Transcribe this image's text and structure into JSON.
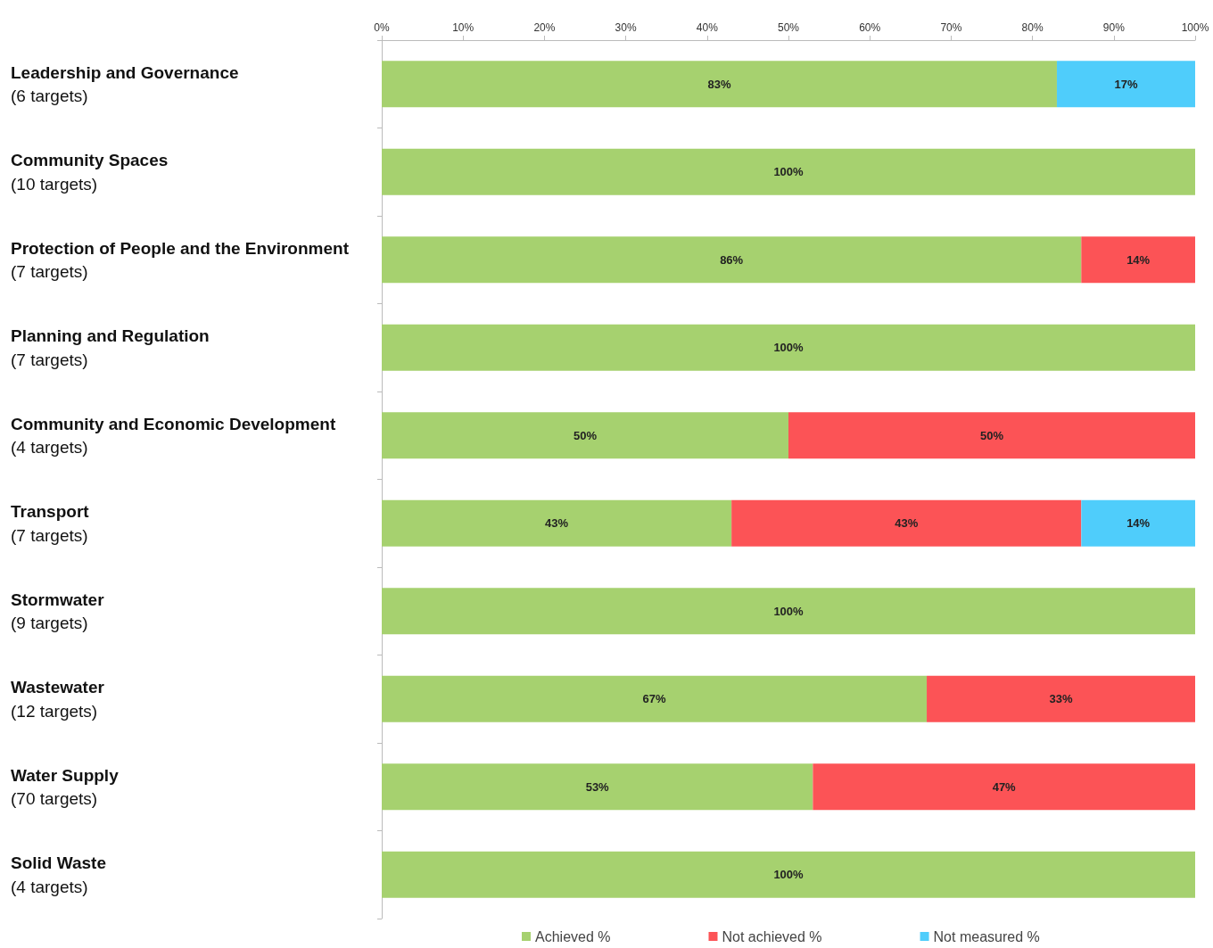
{
  "chart_data": {
    "type": "bar",
    "orientation": "horizontal",
    "stacked": true,
    "categories": [
      "Leadership and Governance\n(6 targets)",
      "Community Spaces\n(10 targets)",
      "Protection of People and the Environment\n(7 targets)",
      "Planning and Regulation\n(7 targets)",
      "Community and Economic Development\n(4 targets)",
      "Transport\n(7 targets)",
      "Stormwater\n(9 targets)",
      "Wastewater\n(12 targets)",
      "Water Supply\n(70 targets)",
      "Solid Waste\n(4 targets)"
    ],
    "series": [
      {
        "name": "Achieved %",
        "color": "#a6d16f",
        "values": [
          83,
          100,
          86,
          100,
          50,
          43,
          100,
          67,
          53,
          100
        ],
        "value_labels": [
          "83%",
          "100%",
          "86%",
          "100%",
          "50%",
          "43%",
          "100%",
          "67%",
          "53%",
          "100%"
        ]
      },
      {
        "name": "Not achieved %",
        "color": "#fc5356",
        "values": [
          null,
          null,
          14,
          null,
          50,
          43,
          null,
          33,
          47,
          null
        ],
        "value_labels": [
          null,
          null,
          "14%",
          null,
          "50%",
          "43%",
          null,
          "33%",
          "47%",
          null
        ]
      },
      {
        "name": "Not measured %",
        "color": "#4fcdfb",
        "values": [
          17,
          null,
          null,
          null,
          null,
          14,
          null,
          null,
          null,
          null
        ],
        "value_labels": [
          "17%",
          null,
          null,
          null,
          null,
          "14%",
          null,
          null,
          null,
          null
        ]
      }
    ],
    "xlim": [
      0,
      100
    ],
    "xticks": [
      {
        "value": 0,
        "label": "0%"
      },
      {
        "value": 10,
        "label": "10%"
      },
      {
        "value": 20,
        "label": "20%"
      },
      {
        "value": 30,
        "label": "30%"
      },
      {
        "value": 40,
        "label": "40%"
      },
      {
        "value": 50,
        "label": "50%"
      },
      {
        "value": 60,
        "label": "60%"
      },
      {
        "value": 70,
        "label": "70%"
      },
      {
        "value": 80,
        "label": "80%"
      },
      {
        "value": 90,
        "label": "90%"
      },
      {
        "value": 100,
        "label": "100%"
      }
    ],
    "grid": false,
    "legend": "bottom"
  }
}
